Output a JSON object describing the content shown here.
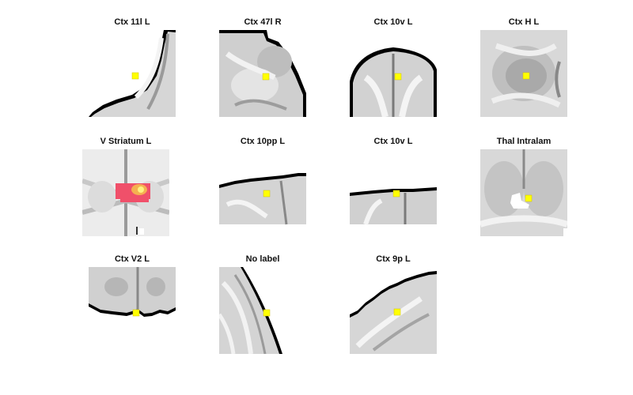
{
  "panels": [
    {
      "title": "Ctx 11l L",
      "type": "edge-corner"
    },
    {
      "title": "Ctx 47l R",
      "type": "lobe-right"
    },
    {
      "title": "Ctx 10v L",
      "type": "dome"
    },
    {
      "title": "Ctx H L",
      "type": "hippocampus"
    },
    {
      "title": "V Striatum L",
      "type": "striatum"
    },
    {
      "title": "Ctx 10pp L",
      "type": "strip"
    },
    {
      "title": "Ctx 10v L",
      "type": "flat"
    },
    {
      "title": "Thal Intralam",
      "type": "thalamus"
    },
    {
      "title": "Ctx V2 L",
      "type": "occipital"
    },
    {
      "title": "No label",
      "type": "diagonal"
    },
    {
      "title": "Ctx 9p L",
      "type": "steps"
    }
  ],
  "colors": {
    "marker": "#ffff00",
    "heat_outer": "#f0506a",
    "heat_inner": "#f5b050",
    "tissue_light": "#f0f0f0",
    "tissue_dark": "#8a8a8a",
    "edge": "#000000"
  }
}
